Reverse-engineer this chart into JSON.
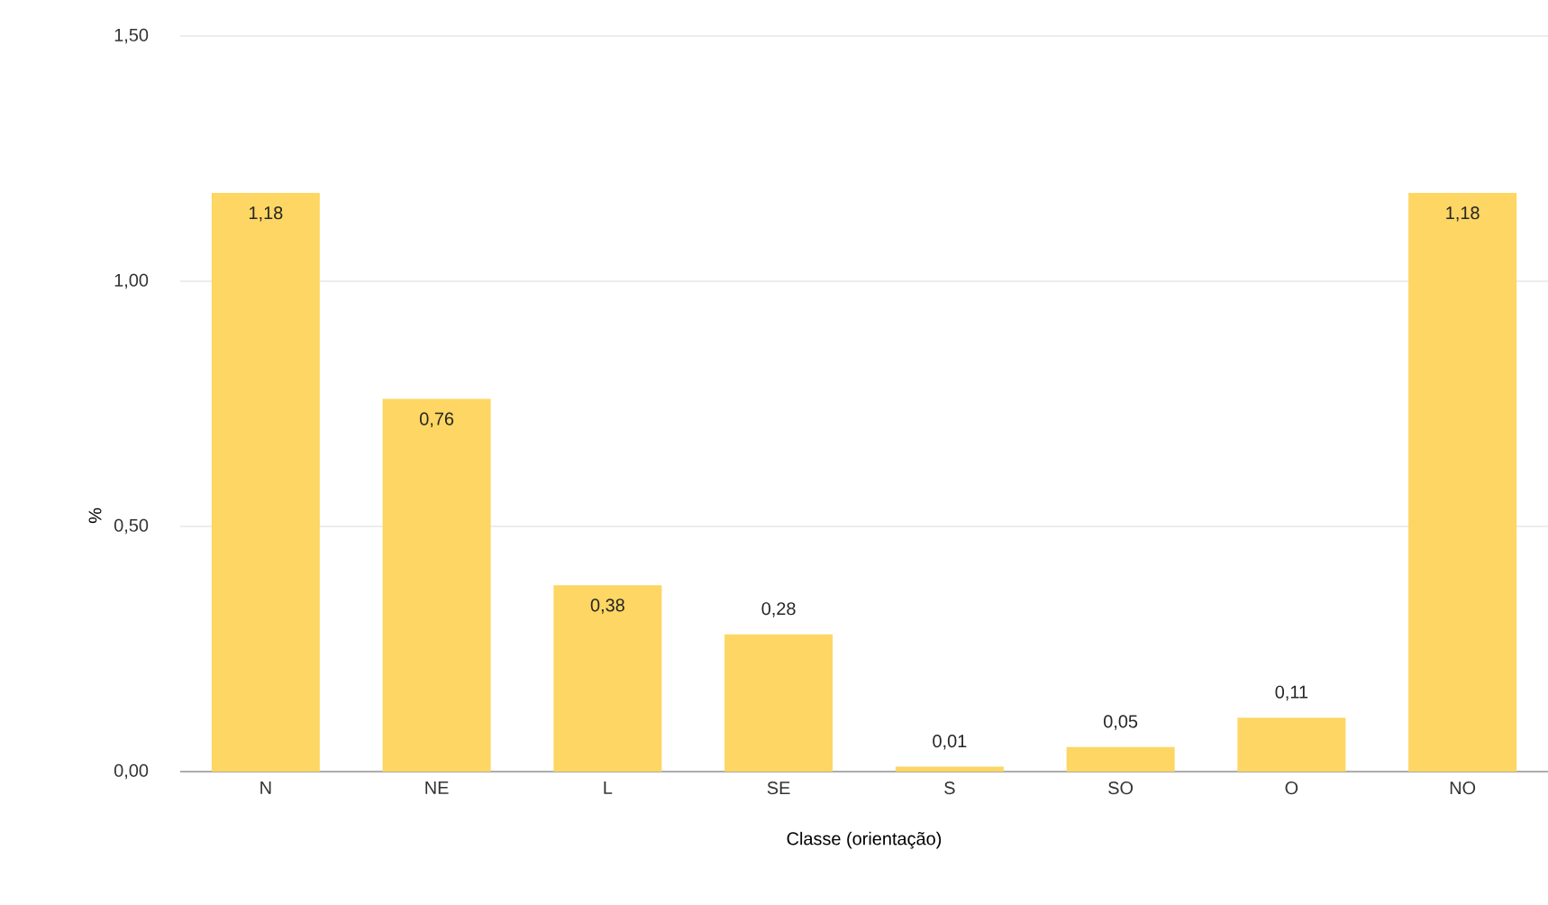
{
  "chart_data": {
    "type": "bar",
    "xlabel": "Classe (orientação)",
    "ylabel": "%",
    "categories": [
      "N",
      "NE",
      "L",
      "SE",
      "S",
      "SO",
      "O",
      "NO"
    ],
    "values": [
      1.18,
      0.76,
      0.38,
      0.28,
      0.01,
      0.05,
      0.11,
      1.18
    ],
    "value_labels": [
      "1,18",
      "0,76",
      "0,38",
      "0,28",
      "0,01",
      "0,05",
      "0,11",
      "1,18"
    ],
    "color": "#fdd663",
    "ylim": [
      0,
      1.5
    ],
    "yticks": [
      {
        "value": 0,
        "label": "0,00"
      },
      {
        "value": 0.5,
        "label": "0,50"
      },
      {
        "value": 1,
        "label": "1,00"
      },
      {
        "value": 1.5,
        "label": "1,50"
      }
    ],
    "grid": "y"
  }
}
